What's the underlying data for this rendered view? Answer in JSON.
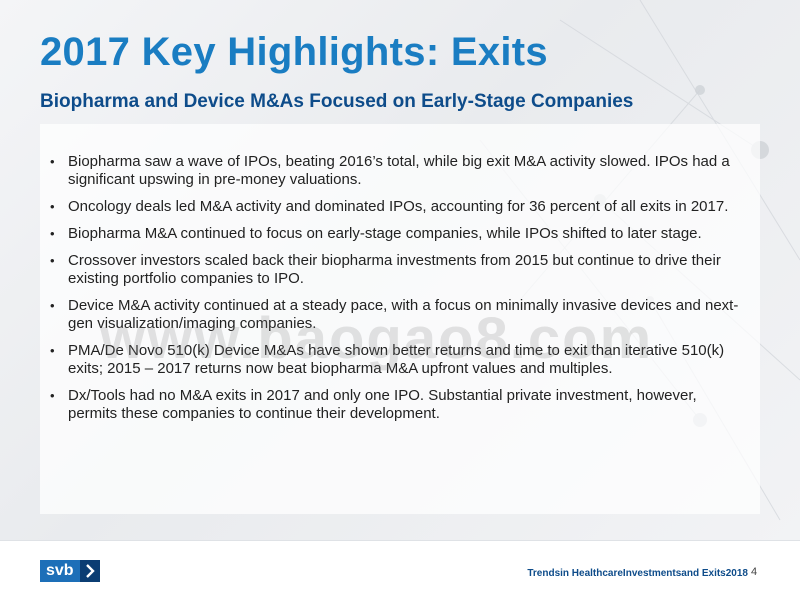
{
  "slide": {
    "title": "2017 Key Highlights: Exits",
    "subtitle": "Biopharma and Device M&As Focused on Early-Stage Companies",
    "bullets": [
      {
        "line1": "Biopharma saw a wave of IPOs, beating 2016’s total, while big exit M&A activity slowed. IPOs had a",
        "line2": "significant upswing in pre-money valuations."
      },
      {
        "line1": "Oncology deals led M&A activity and dominated IPOs, accounting for 36 percent of all exits in 2017.",
        "line2": ""
      },
      {
        "line1": "Biopharma M&A continued to focus on early-stage companies, while IPOs shifted to later stage.",
        "line2": ""
      },
      {
        "line1": "Crossover investors scaled back their biopharma investments from 2015 but continue to drive their",
        "line2": "existing portfolio companies to IPO."
      },
      {
        "line1": "Device M&A activity continued at a steady pace, with a focus on minimally invasive devices and next-",
        "line2": "gen visualization/imaging companies."
      },
      {
        "line1": "PMA/De Novo 510(k) Device M&As have shown better returns and time to exit than iterative 510(k)",
        "line2": "exits; 2015 – 2017 returns now beat biopharma M&A upfront values and multiples."
      },
      {
        "line1": "Dx/Tools had no M&A exits in 2017 and only one IPO. Substantial private investment, however,",
        "line2": "permits these companies to continue their development."
      }
    ],
    "bullet_symbol": "•"
  },
  "watermark": "www.baogao8.com",
  "footer": {
    "logo_text": "svb",
    "logo_icon": "chevron-right-icon",
    "report_title": "Trendsin HealthcareInvestmentsand Exits2018",
    "page_number": "4"
  },
  "colors": {
    "title": "#1a7dc2",
    "subtitle": "#0e4c8a",
    "logo_blue": "#1d6fb8",
    "logo_dark": "#0b3d73"
  }
}
